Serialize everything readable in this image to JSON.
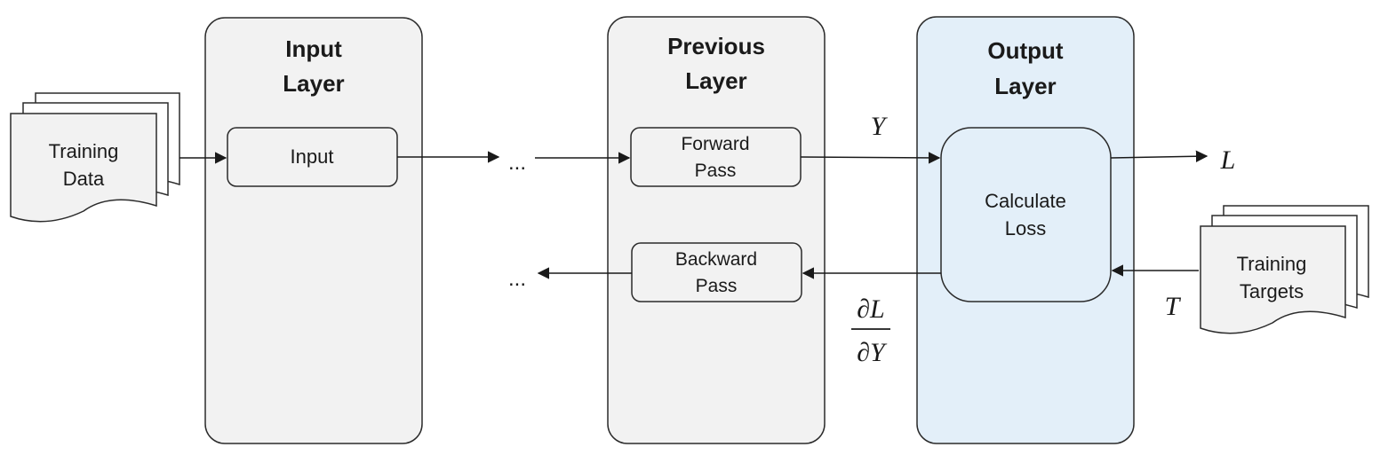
{
  "colors": {
    "layer_fill": "#f2f2f2",
    "output_layer_fill": "#e3eff9",
    "stroke": "#2b2b2b",
    "text": "#1a1a1a"
  },
  "layers": {
    "input": {
      "title_line1": "Input",
      "title_line2": "Layer"
    },
    "previous": {
      "title_line1": "Previous",
      "title_line2": "Layer"
    },
    "output": {
      "title_line1": "Output",
      "title_line2": "Layer"
    }
  },
  "blocks": {
    "input": {
      "label": "Input"
    },
    "forward": {
      "label_line1": "Forward",
      "label_line2": "Pass"
    },
    "backward": {
      "label_line1": "Backward",
      "label_line2": "Pass"
    },
    "loss": {
      "label_line1": "Calculate",
      "label_line2": "Loss"
    }
  },
  "documents": {
    "training_data": {
      "label_line1": "Training",
      "label_line2": "Data"
    },
    "training_targets": {
      "label_line1": "Training",
      "label_line2": "Targets"
    }
  },
  "ellipsis": "...",
  "symbols": {
    "y": "Y",
    "l": "L",
    "t": "T",
    "grad_num": "∂L",
    "grad_den": "∂Y"
  }
}
